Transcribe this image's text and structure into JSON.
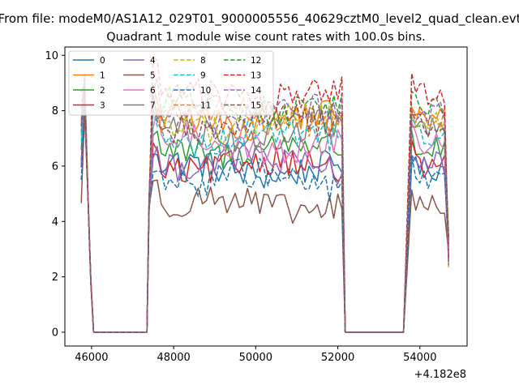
{
  "chart_data": {
    "type": "line",
    "title": "Quadrant 1 module wise count rates with 100.0s bins.",
    "suptitle": "From file: modeM0/AS1A12_029T01_9000005556_40629cztM0_level2_quad_clean.evt",
    "xlabel": "",
    "ylabel": "",
    "x_offset_label": "+4.182e8",
    "xlim": [
      45350,
      55150
    ],
    "ylim": [
      -0.5,
      10.3
    ],
    "xticks": [
      46000,
      48000,
      50000,
      52000,
      54000
    ],
    "yticks": [
      0,
      2,
      4,
      6,
      8,
      10
    ],
    "grid": false,
    "legend": {
      "placement": "upper-left",
      "columns": 4
    },
    "segments": [
      {
        "start": 45750,
        "end": 45980,
        "drop_to": 46050
      },
      {
        "start": 47400,
        "end": 52100,
        "drop_to": 52180
      },
      {
        "start": 53800,
        "end": 54700
      }
    ],
    "gap_ends": [
      47350,
      53600
    ],
    "series": [
      {
        "name": "0",
        "color": "#1f77b4",
        "dash": "solid",
        "level": 5.9
      },
      {
        "name": "1",
        "color": "#ff7f0e",
        "dash": "solid",
        "level": 7.7
      },
      {
        "name": "2",
        "color": "#2ca02c",
        "dash": "solid",
        "level": 6.6
      },
      {
        "name": "3",
        "color": "#d62728",
        "dash": "solid",
        "level": 6.0
      },
      {
        "name": "4",
        "color": "#9467bd",
        "dash": "solid",
        "level": 6.1
      },
      {
        "name": "5",
        "color": "#8c564b",
        "dash": "solid",
        "level": 4.6
      },
      {
        "name": "6",
        "color": "#e377c2",
        "dash": "solid",
        "level": 6.8
      },
      {
        "name": "7",
        "color": "#7f7f7f",
        "dash": "solid",
        "level": 7.3
      },
      {
        "name": "8",
        "color": "#bcbd22",
        "dash": "dashed",
        "level": 7.6
      },
      {
        "name": "9",
        "color": "#17becf",
        "dash": "dashed",
        "level": 7.1
      },
      {
        "name": "10",
        "color": "#1f77b4",
        "dash": "dashed",
        "level": 5.5
      },
      {
        "name": "11",
        "color": "#ff7f0e",
        "dash": "dashed",
        "level": 7.8
      },
      {
        "name": "12",
        "color": "#2ca02c",
        "dash": "dashed",
        "level": 8.2
      },
      {
        "name": "13",
        "color": "#d62728",
        "dash": "dashed",
        "level": 8.6
      },
      {
        "name": "14",
        "color": "#9467bd",
        "dash": "dashed",
        "level": 7.9
      },
      {
        "name": "15",
        "color": "#8c564b",
        "dash": "dashed",
        "level": 7.5
      }
    ]
  }
}
